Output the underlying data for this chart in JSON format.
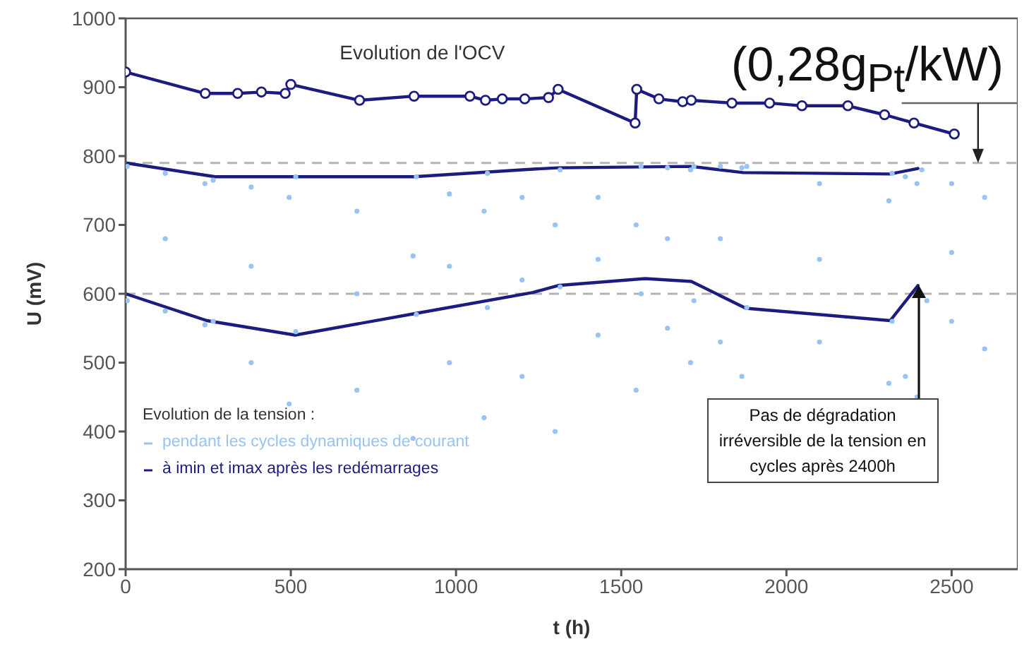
{
  "chart_data": {
    "type": "line",
    "xlabel": "t (h)",
    "ylabel": "U (mV)",
    "xlim": [
      0,
      2700
    ],
    "ylim": [
      200,
      1000
    ],
    "xticks": [
      0,
      500,
      1000,
      1500,
      2000,
      2500
    ],
    "yticks": [
      200,
      300,
      400,
      500,
      600,
      700,
      800,
      900,
      1000
    ],
    "grid": false,
    "legend": "bottom left",
    "legend_title": "Evolution de la tension :",
    "series": [
      {
        "type": "scatter",
        "name": "pendant les cycles dynamiques de courant",
        "color": "#99c4f2",
        "marker": "circle",
        "x": [
          5,
          120,
          240,
          5,
          120,
          240,
          120,
          265,
          380,
          495,
          265,
          380,
          495,
          380,
          515,
          700,
          870,
          515,
          700,
          870,
          700,
          880,
          980,
          1085,
          880,
          980,
          1085,
          980,
          1095,
          1200,
          1300,
          1095,
          1200,
          1300,
          1200,
          1315,
          1430,
          1545,
          1315,
          1430,
          1545,
          1430,
          1560,
          1640,
          1710,
          1560,
          1640,
          1710,
          1640,
          1720,
          1800,
          1865,
          1720,
          1800,
          1865,
          1800,
          1880,
          2100,
          2310,
          1880,
          2100,
          2310,
          2100,
          2320,
          2360,
          2395,
          2320,
          2360,
          2395,
          2410,
          2500,
          2600,
          2425,
          2500,
          2600,
          2500
        ],
        "values": [
          785,
          775,
          760,
          590,
          575,
          555,
          680,
          765,
          755,
          740,
          560,
          500,
          440,
          640,
          770,
          720,
          655,
          545,
          460,
          390,
          600,
          770,
          745,
          720,
          570,
          500,
          420,
          640,
          775,
          740,
          700,
          580,
          480,
          400,
          620,
          780,
          740,
          700,
          610,
          540,
          460,
          650,
          785,
          783,
          780,
          600,
          550,
          500,
          680,
          785,
          785,
          783,
          590,
          530,
          480,
          680,
          785,
          760,
          735,
          580,
          530,
          470,
          650,
          775,
          770,
          760,
          560,
          480,
          450,
          780,
          760,
          740,
          590,
          560,
          520,
          660
        ]
      },
      {
        "color": "#1c1c80",
        "marker": "circle",
        "x": [
          0,
          241,
          339,
          411,
          483,
          500,
          708,
          873,
          1042,
          1089,
          1140,
          1208,
          1280,
          1309,
          1542,
          1547,
          1614,
          1686,
          1712,
          1835,
          1949,
          2047,
          2186,
          2297,
          2386,
          2508
        ],
        "values": [
          922,
          891,
          891,
          893,
          891,
          904,
          881,
          887,
          887,
          881,
          883,
          883,
          885,
          897,
          848,
          897,
          883,
          879,
          881,
          877,
          877,
          873,
          873,
          860,
          848,
          832
        ]
      },
      {
        "name": "à imin et imax après les redémarrages",
        "color": "#1c1c80",
        "marker": "none",
        "x": [
          0,
          271,
          873,
          1233,
          1309,
          1712,
          1869,
          2314,
          2398
        ],
        "values": [
          790,
          770,
          770,
          781,
          783,
          785,
          776,
          774,
          782
        ]
      },
      {
        "color": "#1c1c80",
        "marker": "none",
        "x": [
          0,
          246,
          513,
          873,
          1233,
          1309,
          1572,
          1712,
          1877,
          2314,
          2398
        ],
        "values": [
          600,
          561,
          540,
          571,
          602,
          612,
          622,
          618,
          579,
          561,
          612
        ]
      }
    ],
    "ref_lines": [
      {
        "axis": "y",
        "value": 790,
        "color": "#b4b4b4",
        "line_style": "dashed"
      },
      {
        "axis": "y",
        "value": 600,
        "color": "#b4b4b4",
        "line_style": "dashed"
      }
    ],
    "annotations": [
      "Evolution de l'OCV",
      {
        "text": "(0,28g$_{Pt}$/kW)",
        "x": 2580,
        "y": 790
      },
      {
        "text": "Pas de dégradation irréversible de la tension en cycles après 2400h",
        "x": 2400,
        "y": 612
      }
    ]
  }
}
